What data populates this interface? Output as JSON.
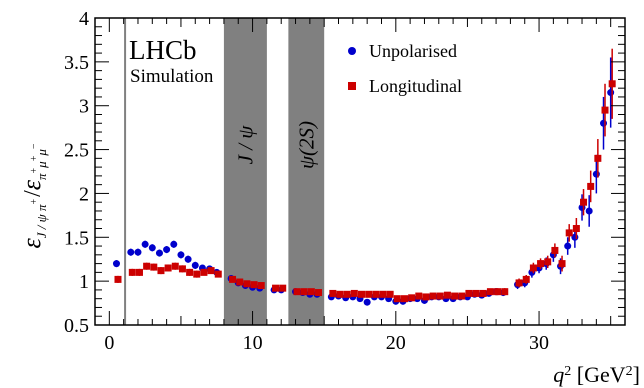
{
  "chart_data": {
    "type": "scatter",
    "xlim": [
      -1,
      36
    ],
    "ylim": [
      0.5,
      4
    ],
    "x_ticks": [
      0,
      10,
      20,
      30
    ],
    "y_ticks": [
      0.5,
      1,
      1.5,
      2,
      2.5,
      3,
      3.5,
      4
    ],
    "y_tick_labels": [
      "0.5",
      "1",
      "1.5",
      "2",
      "2.5",
      "3",
      "3.5",
      "4"
    ],
    "x_tick_labels": [
      "0",
      "10",
      "20",
      "30"
    ],
    "xlabel_main": "q",
    "xlabel_sup": "2",
    "xlabel_unit": " [GeV",
    "xlabel_unit_sup": "2",
    "xlabel_close": "]",
    "ylabel": {
      "eps1": "ε",
      "sub1": "J / ψ π",
      "sub1_sup": "+",
      "slash": "/",
      "eps2": "ε",
      "sub2": "π",
      "sub2_sup": "+",
      "sub2_mu": "μ",
      "sub2_mu_sup1": "+",
      "sub2_mu2": "μ",
      "sub2_mu_sup2": "−"
    },
    "branding": {
      "experiment": "LHCb",
      "tag": "Simulation"
    },
    "vetoed_regions": [
      {
        "label": "J / ψ",
        "range": [
          8.0,
          11.0
        ]
      },
      {
        "label": "ψ(2S)",
        "range": [
          12.5,
          15.0
        ]
      }
    ],
    "reference_line_x": 1.1,
    "legend": {
      "position": "top-center"
    },
    "series": [
      {
        "name": "Unpolarised",
        "color": "#0000cc",
        "marker": "circle",
        "x": [
          0.5,
          1.5,
          2.0,
          2.5,
          3.0,
          3.5,
          4.0,
          4.5,
          5.0,
          5.5,
          6.0,
          6.5,
          7.0,
          7.5,
          8.5,
          9.0,
          9.5,
          10.0,
          10.5,
          11.5,
          12.0,
          13.0,
          13.5,
          14.0,
          14.5,
          15.5,
          16.0,
          16.5,
          17.0,
          17.5,
          18.0,
          18.5,
          19.0,
          19.5,
          20.0,
          20.5,
          21.0,
          21.5,
          22.0,
          22.5,
          23.0,
          23.5,
          24.0,
          24.5,
          25.0,
          25.5,
          26.0,
          26.5,
          27.0,
          27.5,
          28.5,
          29.0,
          29.5,
          30.0,
          30.5,
          31.0,
          31.5,
          32.0,
          32.5,
          33.0,
          33.5,
          34.0,
          34.5,
          35.0
        ],
        "y": [
          1.2,
          1.33,
          1.33,
          1.42,
          1.38,
          1.32,
          1.36,
          1.42,
          1.3,
          1.25,
          1.18,
          1.15,
          1.14,
          1.1,
          1.03,
          0.98,
          0.95,
          0.93,
          0.92,
          0.9,
          0.9,
          0.88,
          0.87,
          0.85,
          0.85,
          0.82,
          0.83,
          0.81,
          0.82,
          0.8,
          0.76,
          0.82,
          0.82,
          0.8,
          0.77,
          0.77,
          0.8,
          0.8,
          0.78,
          0.82,
          0.82,
          0.8,
          0.8,
          0.82,
          0.82,
          0.85,
          0.84,
          0.86,
          0.88,
          0.87,
          0.96,
          0.98,
          1.1,
          1.15,
          1.2,
          1.3,
          1.17,
          1.4,
          1.5,
          1.84,
          1.8,
          2.22,
          2.8,
          3.15
        ],
        "err": [
          0.04,
          0.04,
          0.04,
          0.04,
          0.04,
          0.04,
          0.04,
          0.04,
          0.04,
          0.04,
          0.04,
          0.03,
          0.03,
          0.03,
          0.03,
          0.03,
          0.03,
          0.03,
          0.03,
          0.03,
          0.03,
          0.03,
          0.03,
          0.03,
          0.03,
          0.03,
          0.03,
          0.03,
          0.03,
          0.03,
          0.03,
          0.03,
          0.03,
          0.03,
          0.03,
          0.03,
          0.03,
          0.03,
          0.03,
          0.03,
          0.03,
          0.03,
          0.03,
          0.03,
          0.03,
          0.03,
          0.03,
          0.03,
          0.04,
          0.04,
          0.05,
          0.05,
          0.06,
          0.06,
          0.07,
          0.08,
          0.09,
          0.1,
          0.12,
          0.15,
          0.18,
          0.22,
          0.3,
          0.4
        ]
      },
      {
        "name": "Longitudinal",
        "color": "#cc0000",
        "marker": "square",
        "x": [
          0.5,
          1.5,
          2.0,
          2.5,
          3.0,
          3.5,
          4.0,
          4.5,
          5.0,
          5.5,
          6.0,
          6.5,
          7.0,
          7.5,
          8.5,
          9.0,
          9.5,
          10.0,
          10.5,
          11.5,
          12.0,
          13.0,
          13.5,
          14.0,
          14.5,
          15.5,
          16.0,
          16.5,
          17.0,
          17.5,
          18.0,
          18.5,
          19.0,
          19.5,
          20.0,
          20.5,
          21.0,
          21.5,
          22.0,
          22.5,
          23.0,
          23.5,
          24.0,
          24.5,
          25.0,
          25.5,
          26.0,
          26.5,
          27.0,
          27.5,
          28.5,
          29.0,
          29.5,
          30.0,
          30.5,
          31.0,
          31.5,
          32.0,
          32.5,
          33.0,
          33.5,
          34.0,
          34.5,
          35.0
        ],
        "y": [
          1.02,
          1.1,
          1.1,
          1.17,
          1.16,
          1.12,
          1.15,
          1.17,
          1.14,
          1.1,
          1.08,
          1.1,
          1.12,
          1.08,
          1.02,
          0.99,
          0.97,
          0.96,
          0.95,
          0.92,
          0.92,
          0.88,
          0.88,
          0.88,
          0.87,
          0.86,
          0.85,
          0.85,
          0.86,
          0.85,
          0.85,
          0.85,
          0.85,
          0.85,
          0.8,
          0.8,
          0.81,
          0.83,
          0.82,
          0.83,
          0.83,
          0.84,
          0.83,
          0.83,
          0.86,
          0.86,
          0.86,
          0.88,
          0.88,
          0.88,
          0.98,
          1.02,
          1.15,
          1.2,
          1.22,
          1.35,
          1.2,
          1.55,
          1.6,
          1.9,
          2.08,
          2.4,
          2.95,
          3.25
        ],
        "err": [
          0.04,
          0.04,
          0.04,
          0.04,
          0.04,
          0.04,
          0.04,
          0.04,
          0.04,
          0.04,
          0.04,
          0.03,
          0.03,
          0.03,
          0.03,
          0.03,
          0.03,
          0.03,
          0.03,
          0.03,
          0.03,
          0.03,
          0.03,
          0.03,
          0.03,
          0.03,
          0.03,
          0.03,
          0.03,
          0.03,
          0.03,
          0.03,
          0.03,
          0.03,
          0.03,
          0.03,
          0.03,
          0.03,
          0.03,
          0.03,
          0.03,
          0.03,
          0.03,
          0.03,
          0.03,
          0.03,
          0.03,
          0.03,
          0.04,
          0.04,
          0.05,
          0.05,
          0.06,
          0.06,
          0.07,
          0.08,
          0.09,
          0.1,
          0.12,
          0.15,
          0.18,
          0.22,
          0.3,
          0.4
        ]
      }
    ]
  }
}
